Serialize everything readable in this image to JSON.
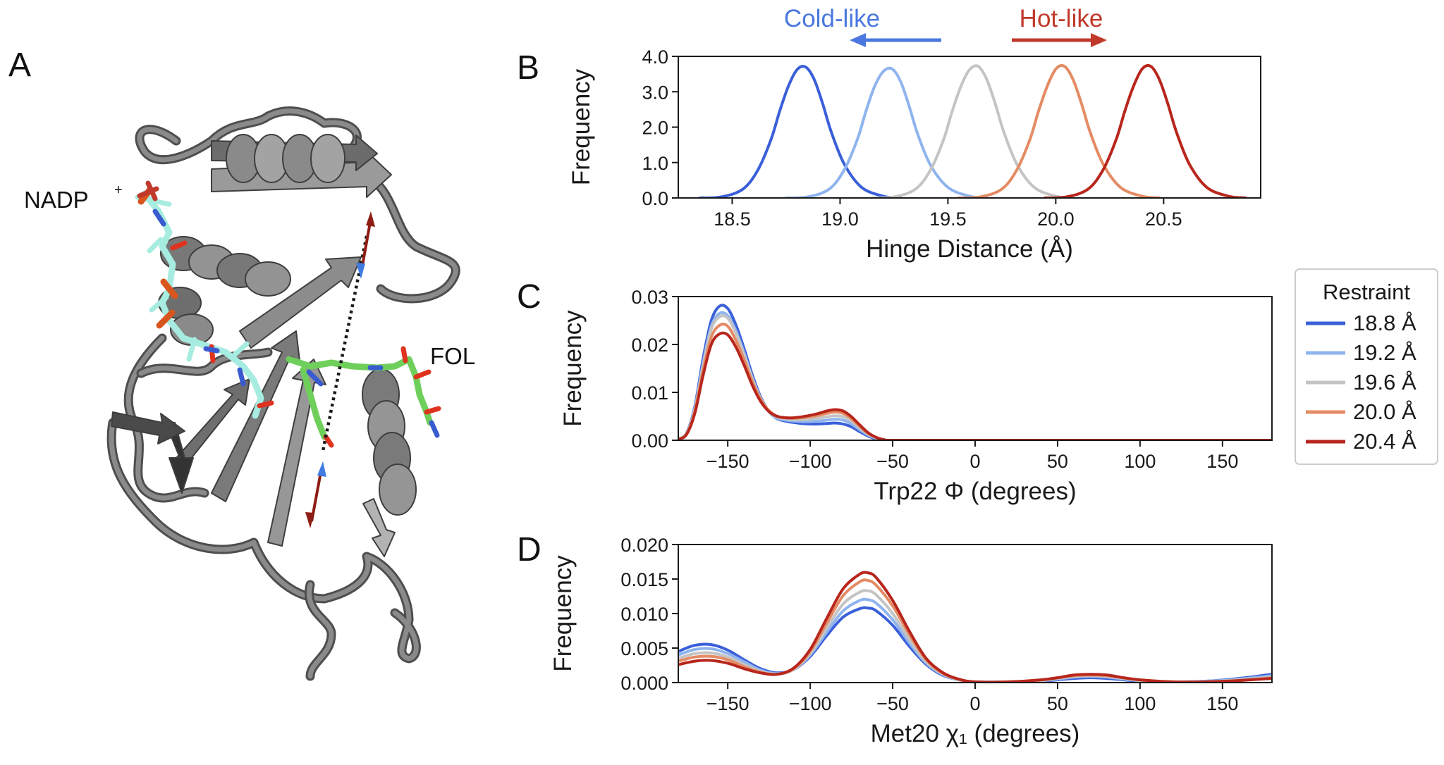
{
  "panel_labels": {
    "a": "A",
    "b": "B",
    "c": "C",
    "d": "D"
  },
  "structure": {
    "label_nadp": "NADP",
    "label_nadp_sup": "+",
    "label_fol": "FOL"
  },
  "arrows": {
    "cold": "Cold-like",
    "hot": "Hot-like",
    "cold_color": "#4a78e0",
    "hot_color": "#c0392b"
  },
  "legend": {
    "title": "Restraint",
    "items": [
      {
        "label": "18.8 Å",
        "color": "#3a5fd9"
      },
      {
        "label": "19.2 Å",
        "color": "#8fb4ef"
      },
      {
        "label": "19.6 Å",
        "color": "#c4c4c4"
      },
      {
        "label": "20.0 Å",
        "color": "#e48b64"
      },
      {
        "label": "20.4 Å",
        "color": "#b8261c"
      }
    ]
  },
  "chart_data": [
    {
      "id": "B",
      "type": "line",
      "xlabel": "Hinge Distance (Å)",
      "ylabel": "Frequency",
      "xlim": [
        18.25,
        20.95
      ],
      "ylim": [
        0,
        4.0
      ],
      "xticks": [
        18.5,
        19.0,
        19.5,
        20.0,
        20.5
      ],
      "xtick_labels": [
        "18.5",
        "19.0",
        "19.5",
        "20.0",
        "20.5"
      ],
      "yticks": [
        0,
        1,
        2,
        3,
        4
      ],
      "ytick_labels": [
        "0.0",
        "1.0",
        "2.0",
        "3.0",
        "4.0"
      ],
      "series": [
        {
          "name": "18.8 Å",
          "color": "#3a5fd9",
          "x": [
            18.35,
            18.45,
            18.55,
            18.62,
            18.68,
            18.72,
            18.76,
            18.8,
            18.84,
            18.88,
            18.92,
            18.96,
            19.02,
            19.1,
            19.2,
            19.28
          ],
          "y": [
            0.0,
            0.03,
            0.25,
            0.8,
            1.65,
            2.45,
            3.15,
            3.62,
            3.7,
            3.35,
            2.65,
            1.85,
            0.95,
            0.3,
            0.05,
            0.0
          ]
        },
        {
          "name": "19.2 Å",
          "color": "#8fb4ef",
          "x": [
            18.75,
            18.85,
            18.95,
            19.02,
            19.08,
            19.12,
            19.16,
            19.2,
            19.24,
            19.28,
            19.32,
            19.36,
            19.42,
            19.5,
            19.6,
            19.68
          ],
          "y": [
            0.0,
            0.03,
            0.25,
            0.8,
            1.65,
            2.45,
            3.15,
            3.57,
            3.65,
            3.3,
            2.6,
            1.8,
            0.92,
            0.3,
            0.05,
            0.0
          ]
        },
        {
          "name": "19.6 Å",
          "color": "#c4c4c4",
          "x": [
            19.15,
            19.25,
            19.35,
            19.42,
            19.48,
            19.52,
            19.56,
            19.6,
            19.64,
            19.68,
            19.72,
            19.76,
            19.82,
            19.9,
            20.0,
            20.08
          ],
          "y": [
            0.0,
            0.03,
            0.25,
            0.8,
            1.65,
            2.45,
            3.15,
            3.62,
            3.72,
            3.35,
            2.65,
            1.85,
            0.95,
            0.3,
            0.05,
            0.0
          ]
        },
        {
          "name": "20.0 Å",
          "color": "#e48b64",
          "x": [
            19.55,
            19.65,
            19.75,
            19.82,
            19.88,
            19.92,
            19.96,
            20.0,
            20.04,
            20.08,
            20.12,
            20.16,
            20.22,
            20.3,
            20.4,
            20.48
          ],
          "y": [
            0.0,
            0.03,
            0.25,
            0.8,
            1.65,
            2.45,
            3.15,
            3.64,
            3.72,
            3.35,
            2.65,
            1.85,
            0.95,
            0.3,
            0.05,
            0.0
          ]
        },
        {
          "name": "20.4 Å",
          "color": "#b8261c",
          "x": [
            19.95,
            20.05,
            20.15,
            20.22,
            20.28,
            20.32,
            20.36,
            20.4,
            20.44,
            20.48,
            20.52,
            20.56,
            20.62,
            20.7,
            20.8,
            20.88
          ],
          "y": [
            0.0,
            0.03,
            0.25,
            0.8,
            1.65,
            2.45,
            3.15,
            3.64,
            3.72,
            3.35,
            2.65,
            1.85,
            0.95,
            0.3,
            0.05,
            0.0
          ]
        }
      ]
    },
    {
      "id": "C",
      "type": "line",
      "xlabel": "Trp22 Φ (degrees)",
      "ylabel": "Frequency",
      "xlim": [
        -180,
        180
      ],
      "ylim": [
        0,
        0.03
      ],
      "xticks": [
        -150,
        -100,
        -50,
        0,
        50,
        100,
        150
      ],
      "xtick_labels": [
        "−150",
        "−100",
        "−50",
        "0",
        "50",
        "100",
        "150"
      ],
      "yticks": [
        0,
        0.01,
        0.02,
        0.03
      ],
      "ytick_labels": [
        "0.00",
        "0.01",
        "0.02",
        "0.03"
      ],
      "series": [
        {
          "name": "18.8 Å",
          "color": "#3a5fd9",
          "x": [
            -180,
            -175,
            -170,
            -165,
            -160,
            -155,
            -150,
            -145,
            -140,
            -135,
            -130,
            -125,
            -120,
            -115,
            -110,
            -105,
            -100,
            -95,
            -90,
            -85,
            -80,
            -75,
            -70,
            -65,
            -60,
            -55,
            -50,
            0,
            50,
            100,
            150,
            180
          ],
          "y": [
            0.0002,
            0.0015,
            0.007,
            0.017,
            0.025,
            0.028,
            0.0275,
            0.024,
            0.019,
            0.0135,
            0.009,
            0.006,
            0.0045,
            0.004,
            0.0037,
            0.0035,
            0.0034,
            0.0034,
            0.0035,
            0.0036,
            0.0034,
            0.0028,
            0.0018,
            0.0009,
            0.0003,
            0.0001,
            0.0,
            0.0,
            0.0,
            0.0,
            0.0,
            0.0
          ]
        },
        {
          "name": "19.2 Å",
          "color": "#8fb4ef",
          "x": [
            -180,
            -175,
            -170,
            -165,
            -160,
            -155,
            -150,
            -145,
            -140,
            -135,
            -130,
            -125,
            -120,
            -115,
            -110,
            -105,
            -100,
            -95,
            -90,
            -85,
            -80,
            -75,
            -70,
            -65,
            -60,
            -55,
            -50,
            0,
            50,
            100,
            150,
            180
          ],
          "y": [
            0.0002,
            0.0014,
            0.0066,
            0.016,
            0.0238,
            0.0265,
            0.026,
            0.0228,
            0.0181,
            0.0129,
            0.0087,
            0.006,
            0.0046,
            0.0042,
            0.004,
            0.0039,
            0.0039,
            0.004,
            0.0042,
            0.0044,
            0.0042,
            0.0034,
            0.0022,
            0.0011,
            0.0004,
            0.0001,
            0.0,
            0.0,
            0.0,
            0.0,
            0.0,
            0.0
          ]
        },
        {
          "name": "19.6 Å",
          "color": "#c4c4c4",
          "x": [
            -180,
            -175,
            -170,
            -165,
            -160,
            -155,
            -150,
            -145,
            -140,
            -135,
            -130,
            -125,
            -120,
            -115,
            -110,
            -105,
            -100,
            -95,
            -90,
            -85,
            -80,
            -75,
            -70,
            -65,
            -60,
            -55,
            -50,
            0,
            50,
            100,
            150,
            180
          ],
          "y": [
            0.0002,
            0.0014,
            0.0064,
            0.0155,
            0.0232,
            0.0258,
            0.0255,
            0.0223,
            0.0178,
            0.0127,
            0.0087,
            0.0061,
            0.0048,
            0.0045,
            0.0043,
            0.0043,
            0.0044,
            0.0046,
            0.0049,
            0.0051,
            0.0049,
            0.004,
            0.0026,
            0.0013,
            0.0005,
            0.0001,
            0.0,
            0.0,
            0.0,
            0.0,
            0.0,
            0.0
          ]
        },
        {
          "name": "20.0 Å",
          "color": "#e48b64",
          "x": [
            -180,
            -175,
            -170,
            -165,
            -160,
            -155,
            -150,
            -145,
            -140,
            -135,
            -130,
            -125,
            -120,
            -115,
            -110,
            -105,
            -100,
            -95,
            -90,
            -85,
            -80,
            -75,
            -70,
            -65,
            -60,
            -55,
            -50,
            0,
            50,
            100,
            150,
            180
          ],
          "y": [
            0.0002,
            0.0013,
            0.006,
            0.0145,
            0.0215,
            0.024,
            0.0238,
            0.0208,
            0.0167,
            0.0121,
            0.0085,
            0.0062,
            0.005,
            0.0047,
            0.0046,
            0.0047,
            0.0049,
            0.0052,
            0.0056,
            0.0059,
            0.0056,
            0.0045,
            0.0029,
            0.0015,
            0.0006,
            0.0001,
            0.0,
            0.0,
            0.0,
            0.0,
            0.0,
            0.0
          ]
        },
        {
          "name": "20.4 Å",
          "color": "#b8261c",
          "x": [
            -180,
            -175,
            -170,
            -165,
            -160,
            -155,
            -150,
            -145,
            -140,
            -135,
            -130,
            -125,
            -120,
            -115,
            -110,
            -105,
            -100,
            -95,
            -90,
            -85,
            -80,
            -75,
            -70,
            -65,
            -60,
            -55,
            -50,
            0,
            50,
            100,
            150,
            180
          ],
          "y": [
            0.0002,
            0.0012,
            0.0056,
            0.0135,
            0.02,
            0.0222,
            0.022,
            0.0194,
            0.0156,
            0.0114,
            0.0081,
            0.006,
            0.005,
            0.0047,
            0.0047,
            0.0049,
            0.0052,
            0.0056,
            0.0061,
            0.0064,
            0.0061,
            0.0049,
            0.0032,
            0.0016,
            0.0006,
            0.0001,
            0.0,
            0.0,
            0.0,
            0.0,
            0.0,
            0.0
          ]
        }
      ]
    },
    {
      "id": "D",
      "type": "line",
      "xlabel": "Met20 χ₁ (degrees)",
      "ylabel": "Frequency",
      "xlim": [
        -180,
        180
      ],
      "ylim": [
        0,
        0.02
      ],
      "xticks": [
        -150,
        -100,
        -50,
        0,
        50,
        100,
        150
      ],
      "xtick_labels": [
        "−150",
        "−100",
        "−50",
        "0",
        "50",
        "100",
        "150"
      ],
      "yticks": [
        0,
        0.005,
        0.01,
        0.015,
        0.02
      ],
      "ytick_labels": [
        "0.000",
        "0.005",
        "0.010",
        "0.015",
        "0.020"
      ],
      "series": [
        {
          "name": "18.8 Å",
          "color": "#3a5fd9",
          "x": [
            -180,
            -170,
            -160,
            -150,
            -140,
            -130,
            -120,
            -110,
            -100,
            -90,
            -80,
            -70,
            -65,
            -60,
            -50,
            -40,
            -30,
            -20,
            -10,
            0,
            20,
            40,
            50,
            60,
            70,
            80,
            90,
            100,
            120,
            140,
            160,
            180
          ],
          "y": [
            0.0045,
            0.0054,
            0.0055,
            0.0047,
            0.0033,
            0.002,
            0.0014,
            0.0019,
            0.0038,
            0.0068,
            0.0095,
            0.0107,
            0.0108,
            0.0104,
            0.0083,
            0.0053,
            0.0027,
            0.0011,
            0.0004,
            0.0001,
            0.0001,
            0.0002,
            0.0004,
            0.0006,
            0.0007,
            0.0006,
            0.0004,
            0.0002,
            0.0001,
            0.0002,
            0.0006,
            0.0012
          ]
        },
        {
          "name": "19.2 Å",
          "color": "#8fb4ef",
          "x": [
            -180,
            -170,
            -160,
            -150,
            -140,
            -130,
            -120,
            -110,
            -100,
            -90,
            -80,
            -70,
            -65,
            -60,
            -50,
            -40,
            -30,
            -20,
            -10,
            0,
            20,
            40,
            50,
            60,
            70,
            80,
            90,
            100,
            120,
            140,
            160,
            180
          ],
          "y": [
            0.004,
            0.0048,
            0.0049,
            0.0042,
            0.003,
            0.0018,
            0.0013,
            0.0019,
            0.004,
            0.0073,
            0.0104,
            0.0119,
            0.012,
            0.0115,
            0.0091,
            0.0058,
            0.0029,
            0.0012,
            0.0004,
            0.0001,
            0.0001,
            0.0003,
            0.0005,
            0.0008,
            0.0009,
            0.0008,
            0.0005,
            0.0003,
            0.0001,
            0.0002,
            0.0005,
            0.001
          ]
        },
        {
          "name": "19.6 Å",
          "color": "#c4c4c4",
          "x": [
            -180,
            -170,
            -160,
            -150,
            -140,
            -130,
            -120,
            -110,
            -100,
            -90,
            -80,
            -70,
            -65,
            -60,
            -50,
            -40,
            -30,
            -20,
            -10,
            0,
            20,
            40,
            50,
            60,
            70,
            80,
            90,
            100,
            120,
            140,
            160,
            180
          ],
          "y": [
            0.0035,
            0.0042,
            0.0043,
            0.0037,
            0.0026,
            0.0016,
            0.0012,
            0.0019,
            0.0042,
            0.0079,
            0.0114,
            0.0131,
            0.0133,
            0.0127,
            0.01,
            0.0063,
            0.0031,
            0.0013,
            0.0004,
            0.0001,
            0.0001,
            0.0003,
            0.0006,
            0.0009,
            0.001,
            0.0009,
            0.0006,
            0.0003,
            0.0001,
            0.0001,
            0.0004,
            0.0008
          ]
        },
        {
          "name": "20.0 Å",
          "color": "#e48b64",
          "x": [
            -180,
            -170,
            -160,
            -150,
            -140,
            -130,
            -120,
            -110,
            -100,
            -90,
            -80,
            -70,
            -65,
            -60,
            -50,
            -40,
            -30,
            -20,
            -10,
            0,
            20,
            40,
            50,
            60,
            70,
            80,
            90,
            100,
            120,
            140,
            160,
            180
          ],
          "y": [
            0.0031,
            0.0037,
            0.0038,
            0.0033,
            0.0023,
            0.0015,
            0.0012,
            0.002,
            0.0045,
            0.0086,
            0.0126,
            0.0146,
            0.0148,
            0.0141,
            0.0111,
            0.007,
            0.0034,
            0.0014,
            0.0005,
            0.0001,
            0.0001,
            0.0004,
            0.0007,
            0.001,
            0.0011,
            0.001,
            0.0007,
            0.0004,
            0.0001,
            0.0001,
            0.0003,
            0.0007
          ]
        },
        {
          "name": "20.4 Å",
          "color": "#b8261c",
          "x": [
            -180,
            -170,
            -160,
            -150,
            -140,
            -130,
            -120,
            -110,
            -100,
            -90,
            -80,
            -70,
            -65,
            -60,
            -50,
            -40,
            -30,
            -20,
            -10,
            0,
            20,
            40,
            50,
            60,
            70,
            80,
            90,
            100,
            120,
            140,
            160,
            180
          ],
          "y": [
            0.0026,
            0.0031,
            0.0032,
            0.0028,
            0.002,
            0.0014,
            0.0012,
            0.0021,
            0.0048,
            0.0093,
            0.0136,
            0.0157,
            0.0159,
            0.0152,
            0.0119,
            0.0075,
            0.0036,
            0.0015,
            0.0005,
            0.0001,
            0.0001,
            0.0004,
            0.0007,
            0.0011,
            0.0012,
            0.0011,
            0.0007,
            0.0004,
            0.0001,
            0.0001,
            0.0003,
            0.0006
          ]
        }
      ]
    }
  ]
}
